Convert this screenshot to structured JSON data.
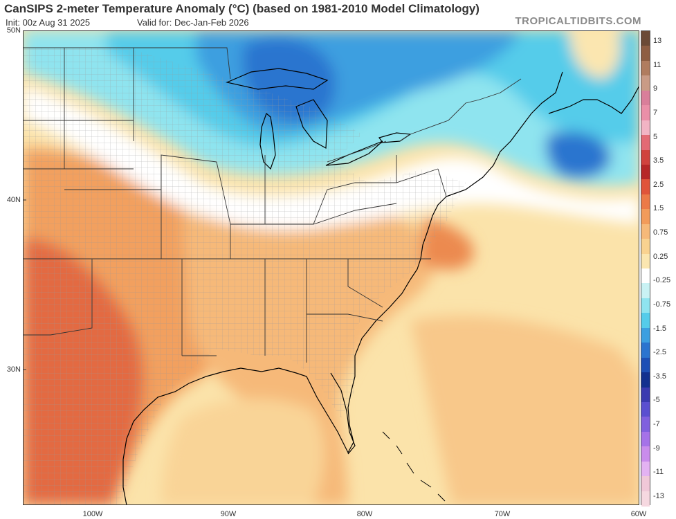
{
  "header": {
    "title": "CanSIPS 2-meter Temperature Anomaly (°C) (based on 1981-2010 Model Climatology)",
    "init": "Init: 00z Aug 31 2025",
    "valid": "Valid for: Dec-Jan-Feb 2026",
    "brand": "TROPICALTIDBITS.COM"
  },
  "axes": {
    "lat_labels": [
      "50N",
      "40N",
      "30N"
    ],
    "lon_labels": [
      "100W",
      "90W",
      "80W",
      "70W",
      "60W"
    ]
  },
  "colorbar": {
    "labels": [
      "13",
      "11",
      "9",
      "7",
      "5",
      "3.5",
      "2.5",
      "1.5",
      "0.75",
      "0.25",
      "-0.25",
      "-0.75",
      "-1.5",
      "-2.5",
      "-3.5",
      "-5",
      "-7",
      "-9",
      "-11",
      "-13"
    ],
    "colors": [
      "#6b4a36",
      "#8e5e43",
      "#b07c5f",
      "#c99b86",
      "#d97e9a",
      "#ea8fa8",
      "#f2b4c4",
      "#e36a74",
      "#d0423d",
      "#b62727",
      "#e0543a",
      "#ec7a48",
      "#f29b5a",
      "#f6b979",
      "#f9d290",
      "#fbe6b0",
      "#ffffff",
      "#c9f2f4",
      "#8fe4ef",
      "#55ccea",
      "#3c9fe0",
      "#2b74cf",
      "#1d4fb5",
      "#12308f",
      "#3a3ab0",
      "#5a4fd0",
      "#8060de",
      "#a572e8",
      "#c98cec",
      "#e3b2f2",
      "#f0c8d8",
      "#f6d8e0"
    ]
  },
  "legend_features": {
    "coast_color": "#000000",
    "state_color": "#333333",
    "county_color": "#9a9a9a"
  }
}
